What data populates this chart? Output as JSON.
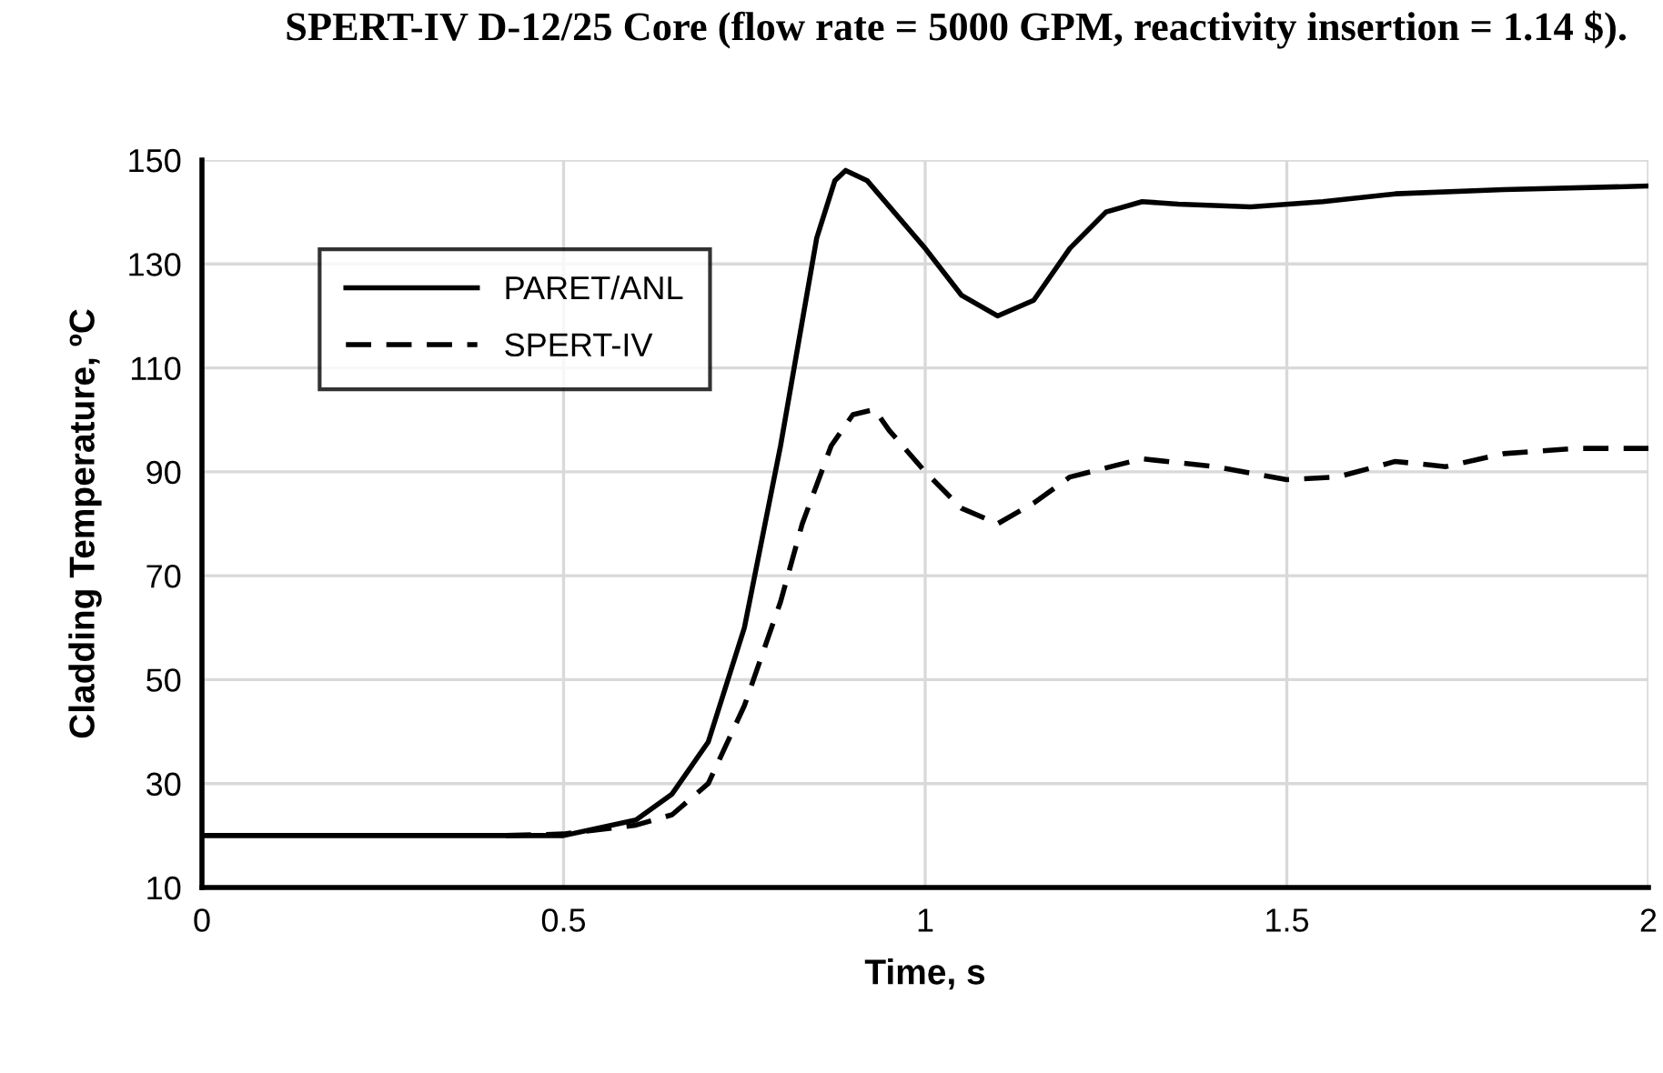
{
  "chart_data": {
    "type": "line",
    "title": "SPERT-IV D-12/25 Core (flow rate = 5000 GPM, reactivity insertion = 1.14 $).",
    "xlabel": "Time, s",
    "ylabel": "Cladding Temperature, ºC",
    "xlim": [
      0,
      2
    ],
    "xticks": [
      0,
      0.5,
      1,
      1.5,
      2
    ],
    "ylim": [
      10,
      150
    ],
    "yticks": [
      10,
      30,
      50,
      70,
      90,
      110,
      130,
      150
    ],
    "grid": true,
    "legend": "top left",
    "series": [
      {
        "name": "PARET/ANL",
        "color": "#000000",
        "line_style": "solid",
        "x": [
          0,
          0.5,
          0.6,
          0.65,
          0.7,
          0.75,
          0.8,
          0.85,
          0.875,
          0.89,
          0.92,
          1.0,
          1.05,
          1.1,
          1.15,
          1.2,
          1.25,
          1.3,
          1.35,
          1.45,
          1.55,
          1.65,
          1.8,
          2.0
        ],
        "values": [
          20,
          20,
          23,
          28,
          38,
          60,
          95,
          135,
          146,
          148,
          146,
          133,
          124,
          120,
          123,
          133,
          140,
          142,
          141.5,
          141,
          142,
          143.5,
          144.3,
          145
        ]
      },
      {
        "name": "SPERT-IV",
        "color": "#000000",
        "line_style": "dashed",
        "x": [
          0.42,
          0.5,
          0.6,
          0.65,
          0.7,
          0.75,
          0.8,
          0.83,
          0.87,
          0.9,
          0.93,
          0.95,
          1.0,
          1.05,
          1.1,
          1.15,
          1.2,
          1.3,
          1.4,
          1.5,
          1.57,
          1.65,
          1.72,
          1.8,
          1.9,
          2.0
        ],
        "values": [
          20,
          20.3,
          22,
          24,
          30,
          45,
          65,
          80,
          95,
          101,
          102,
          98,
          90,
          83,
          80,
          84,
          89,
          92.5,
          91,
          88.5,
          89,
          92,
          91,
          93.5,
          94.5,
          94.5
        ]
      }
    ]
  }
}
